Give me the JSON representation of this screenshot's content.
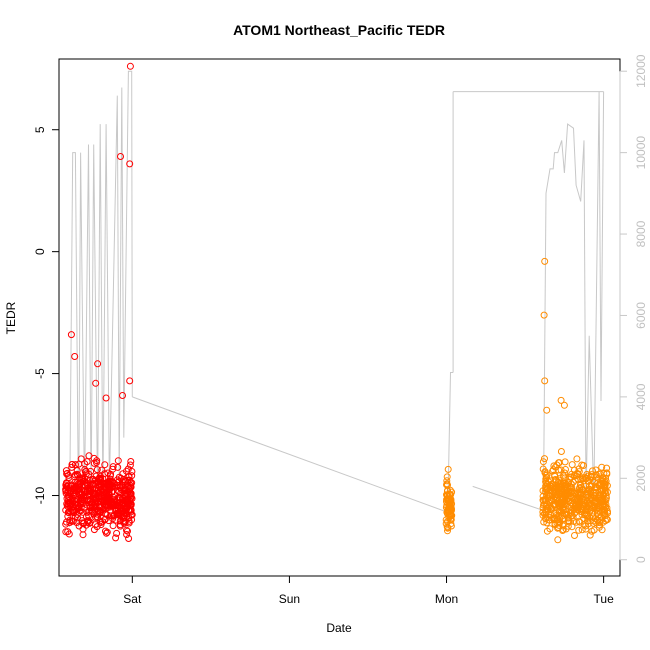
{
  "chart_data": {
    "type": "scatter",
    "title": "ATOM1 Northeast_Pacific TEDR",
    "xlabel": "Date",
    "ylabel": "TEDR",
    "x_ticks": [
      {
        "value": 0,
        "label": "Sat"
      },
      {
        "value": 24,
        "label": "Sun"
      },
      {
        "value": 48,
        "label": "Mon"
      },
      {
        "value": 72,
        "label": "Tue"
      }
    ],
    "x_unit_note": "hours from Sat 00:00",
    "xlim": [
      -11.2,
      74.5
    ],
    "ylim": [
      -13.3,
      7.9
    ],
    "y_ticks": [
      -10,
      -5,
      0,
      5
    ],
    "y2lim": [
      -400,
      12300
    ],
    "y2_ticks": [
      0,
      2000,
      4000,
      6000,
      8000,
      10000,
      12000
    ],
    "y2_color": "#c8c8c8",
    "colors": {
      "segment1": "#ff0000",
      "segment2": "#ff8c00",
      "altitude_line": "#c8c8c8"
    },
    "series": [
      {
        "id": "tedr_seg1",
        "color": "#ff0000",
        "x_range": [
          -10.2,
          0
        ],
        "y_range": [
          -12,
          -7
        ],
        "outliers": [
          {
            "x": -9.3,
            "y": -3.4
          },
          {
            "x": -8.8,
            "y": -4.3
          },
          {
            "x": -5.3,
            "y": -4.6
          },
          {
            "x": -5.6,
            "y": -5.4
          },
          {
            "x": -1.8,
            "y": 3.9
          },
          {
            "x": -0.4,
            "y": 3.6
          },
          {
            "x": -0.3,
            "y": 7.6
          },
          {
            "x": -0.4,
            "y": -5.3
          },
          {
            "x": -1.5,
            "y": -5.9
          },
          {
            "x": -4.0,
            "y": -6.0
          }
        ]
      },
      {
        "id": "tedr_seg2a",
        "color": "#ff8c00",
        "x_range": [
          47.9,
          48.8
        ],
        "y_range": [
          -11.8,
          -7.6
        ],
        "outliers": []
      },
      {
        "id": "tedr_seg2b",
        "color": "#ff8c00",
        "x_range": [
          62.7,
          72.6
        ],
        "y_range": [
          -12,
          -7
        ],
        "outliers": [
          {
            "x": 63.0,
            "y": -0.4
          },
          {
            "x": 62.9,
            "y": -2.6
          },
          {
            "x": 63.0,
            "y": -5.3
          },
          {
            "x": 63.3,
            "y": -6.5
          },
          {
            "x": 65.5,
            "y": -6.1
          },
          {
            "x": 66.0,
            "y": -6.3
          }
        ]
      }
    ],
    "altitude_line": {
      "points": [
        [
          -9.6,
          800
        ],
        [
          -9.1,
          10000
        ],
        [
          -8.7,
          10000
        ],
        [
          -8.2,
          800
        ],
        [
          -7.9,
          10000
        ],
        [
          -7.3,
          1500
        ],
        [
          -6.7,
          10200
        ],
        [
          -6.3,
          1500
        ],
        [
          -5.9,
          10200
        ],
        [
          -5.3,
          1500
        ],
        [
          -4.9,
          10700
        ],
        [
          -4.5,
          1500
        ],
        [
          -4.0,
          10700
        ],
        [
          -3.5,
          1800
        ],
        [
          -2.3,
          11400
        ],
        [
          -2.0,
          2000
        ],
        [
          -1.6,
          11600
        ],
        [
          -1.3,
          3000
        ],
        [
          -0.6,
          12000
        ],
        [
          -0.1,
          12000
        ],
        [
          0,
          4000
        ],
        [
          47.6,
          1200
        ],
        [
          48.2,
          1200
        ],
        [
          48.6,
          4600
        ],
        [
          49.0,
          4600
        ],
        [
          62.8,
          1200
        ],
        [
          63.2,
          9000
        ],
        [
          63.8,
          9600
        ],
        [
          64.3,
          9600
        ],
        [
          64.5,
          10000
        ],
        [
          65.0,
          10000
        ],
        [
          65.6,
          10300
        ],
        [
          66.0,
          9500
        ],
        [
          66.5,
          10700
        ],
        [
          67.4,
          10600
        ],
        [
          67.8,
          9200
        ],
        [
          68.5,
          8800
        ],
        [
          69.0,
          10300
        ],
        [
          69.3,
          1500
        ],
        [
          69.8,
          5500
        ],
        [
          70.5,
          1500
        ],
        [
          71.3,
          11500
        ],
        [
          71.6,
          3900
        ],
        [
          72.0,
          11500
        ]
      ],
      "connectors": [
        [
          [
            0,
            4000
          ],
          [
            47.6,
            1200
          ]
        ],
        [
          [
            49.0,
            11500
          ],
          [
            72.0,
            11500
          ]
        ],
        [
          [
            49.0,
            11500
          ],
          [
            49.0,
            4600
          ]
        ],
        [
          [
            52.0,
            1800
          ],
          [
            63.0,
            1200
          ]
        ]
      ]
    }
  }
}
